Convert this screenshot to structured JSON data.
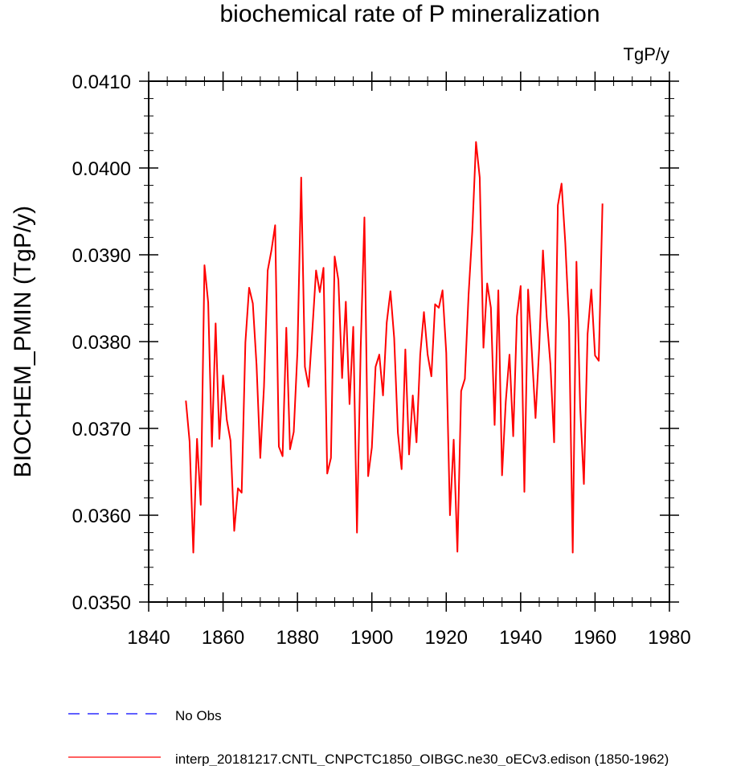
{
  "chart_data": {
    "type": "line",
    "title": "biochemical rate of P mineralization",
    "units_label": "TgP/y",
    "xlabel": "",
    "ylabel": "BIOCHEM_PMIN  (TgP/y)",
    "xlim": [
      1840,
      1980
    ],
    "ylim": [
      0.035,
      0.041
    ],
    "x_ticks": [
      1840,
      1860,
      1880,
      1900,
      1920,
      1940,
      1960,
      1980
    ],
    "x_tick_labels": [
      "1840",
      "1860",
      "1880",
      "1900",
      "1920",
      "1940",
      "1960",
      "1980"
    ],
    "y_ticks": [
      0.035,
      0.036,
      0.037,
      0.038,
      0.039,
      0.04,
      0.041
    ],
    "y_tick_labels": [
      "0.0350",
      "0.0360",
      "0.0370",
      "0.0380",
      "0.0390",
      "0.0400",
      "0.0410"
    ],
    "grid": false,
    "legend_position": "bottom",
    "series": [
      {
        "name": "No Obs",
        "color": "#0000ff",
        "dash": "dashed",
        "x": [],
        "values": []
      },
      {
        "name": "interp_20181217.CNTL_CNPCTC1850_OIBGC.ne30_oECv3.edison (1850-1962)",
        "color": "#ff0000",
        "dash": "solid",
        "x": [
          1850,
          1851,
          1852,
          1853,
          1854,
          1855,
          1856,
          1857,
          1858,
          1859,
          1860,
          1861,
          1862,
          1863,
          1864,
          1865,
          1866,
          1867,
          1868,
          1869,
          1870,
          1871,
          1872,
          1873,
          1874,
          1875,
          1876,
          1877,
          1878,
          1879,
          1880,
          1881,
          1882,
          1883,
          1884,
          1885,
          1886,
          1887,
          1888,
          1889,
          1890,
          1891,
          1892,
          1893,
          1894,
          1895,
          1896,
          1897,
          1898,
          1899,
          1900,
          1901,
          1902,
          1903,
          1904,
          1905,
          1906,
          1907,
          1908,
          1909,
          1910,
          1911,
          1912,
          1913,
          1914,
          1915,
          1916,
          1917,
          1918,
          1919,
          1920,
          1921,
          1922,
          1923,
          1924,
          1925,
          1926,
          1927,
          1928,
          1929,
          1930,
          1931,
          1932,
          1933,
          1934,
          1935,
          1936,
          1937,
          1938,
          1939,
          1940,
          1941,
          1942,
          1943,
          1944,
          1945,
          1946,
          1947,
          1948,
          1949,
          1950,
          1951,
          1952,
          1953,
          1954,
          1955,
          1956,
          1957,
          1958,
          1959,
          1960,
          1961,
          1962
        ],
        "values": [
          0.03732,
          0.03685,
          0.03557,
          0.03688,
          0.03612,
          0.03888,
          0.03845,
          0.03679,
          0.03821,
          0.03688,
          0.03761,
          0.0371,
          0.03686,
          0.03582,
          0.03631,
          0.03626,
          0.03799,
          0.03862,
          0.03844,
          0.03773,
          0.03666,
          0.03748,
          0.03882,
          0.03905,
          0.03934,
          0.03679,
          0.03668,
          0.03816,
          0.03676,
          0.03696,
          0.03789,
          0.03989,
          0.03771,
          0.03748,
          0.03813,
          0.03882,
          0.03857,
          0.03885,
          0.03648,
          0.03666,
          0.03898,
          0.03871,
          0.03758,
          0.03846,
          0.03728,
          0.03817,
          0.0358,
          0.03793,
          0.03943,
          0.03645,
          0.03678,
          0.03771,
          0.03785,
          0.03738,
          0.03822,
          0.03858,
          0.03804,
          0.03695,
          0.03653,
          0.03791,
          0.0367,
          0.03738,
          0.03684,
          0.03785,
          0.03834,
          0.03785,
          0.0376,
          0.03843,
          0.03839,
          0.03859,
          0.03787,
          0.036,
          0.03687,
          0.03558,
          0.03743,
          0.03757,
          0.03854,
          0.03927,
          0.0403,
          0.03989,
          0.03793,
          0.03867,
          0.03839,
          0.03704,
          0.03859,
          0.03646,
          0.03731,
          0.03785,
          0.03691,
          0.03829,
          0.03864,
          0.03627,
          0.0386,
          0.03789,
          0.03712,
          0.03794,
          0.03905,
          0.03828,
          0.03774,
          0.03684,
          0.03957,
          0.03982,
          0.03914,
          0.03823,
          0.03557,
          0.03892,
          0.03725,
          0.03636,
          0.03809,
          0.0386,
          0.03784,
          0.03778,
          0.03959
        ]
      }
    ]
  }
}
